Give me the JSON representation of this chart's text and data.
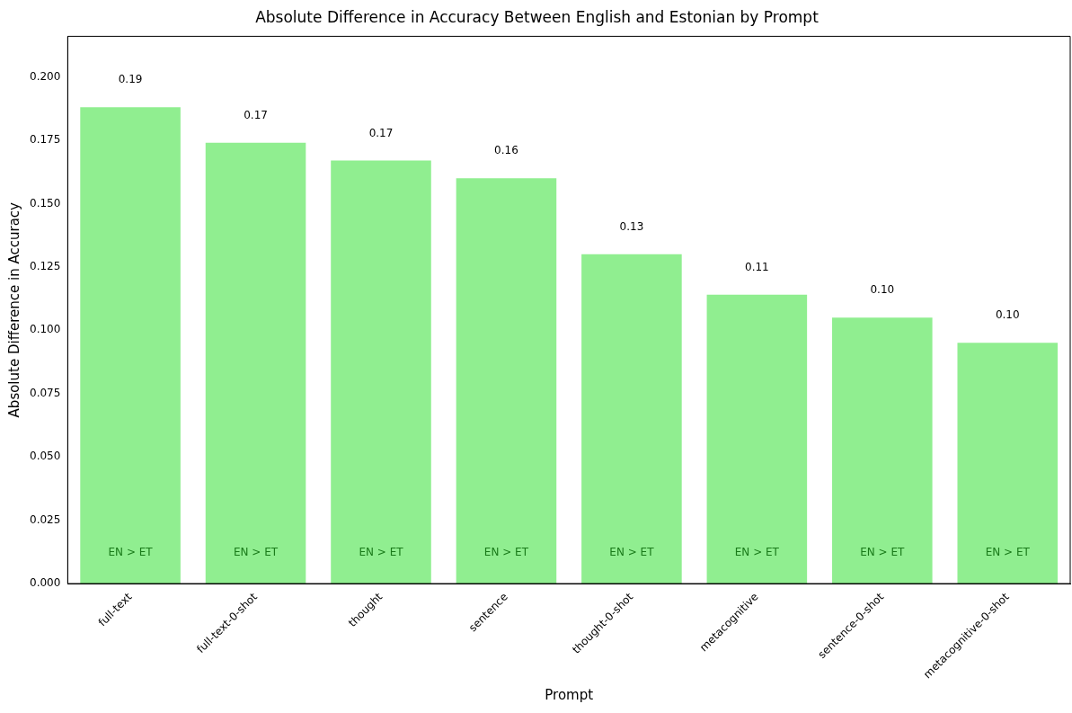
{
  "chart_data": {
    "type": "bar",
    "title": "Absolute Difference in Accuracy Between English and Estonian by Prompt",
    "xlabel": "Prompt",
    "ylabel": "Absolute Difference in Accuracy",
    "categories": [
      "full-text",
      "full-text-0-shot",
      "thought",
      "sentence",
      "thought-0-shot",
      "metacognitive",
      "sentence-0-shot",
      "metacognitive-0-shot"
    ],
    "values": [
      0.188,
      0.174,
      0.167,
      0.16,
      0.13,
      0.114,
      0.105,
      0.095
    ],
    "value_labels": [
      "0.19",
      "0.17",
      "0.17",
      "0.16",
      "0.13",
      "0.11",
      "0.10",
      "0.10"
    ],
    "color": "#90ee90",
    "ylim": [
      0,
      0.216
    ],
    "yticks": [
      {
        "value": 0,
        "label": "0.000"
      },
      {
        "value": 0.025,
        "label": "0.025"
      },
      {
        "value": 0.05,
        "label": "0.050"
      },
      {
        "value": 0.075,
        "label": "0.075"
      },
      {
        "value": 0.1,
        "label": "0.100"
      },
      {
        "value": 0.125,
        "label": "0.125"
      },
      {
        "value": 0.15,
        "label": "0.150"
      },
      {
        "value": 0.175,
        "label": "0.175"
      },
      {
        "value": 0.2,
        "label": "0.200"
      }
    ],
    "annotations": [
      "EN > ET",
      "EN > ET",
      "EN > ET",
      "EN > ET",
      "EN > ET",
      "EN > ET",
      "EN > ET",
      "EN > ET"
    ],
    "grid": false,
    "legend": false
  }
}
